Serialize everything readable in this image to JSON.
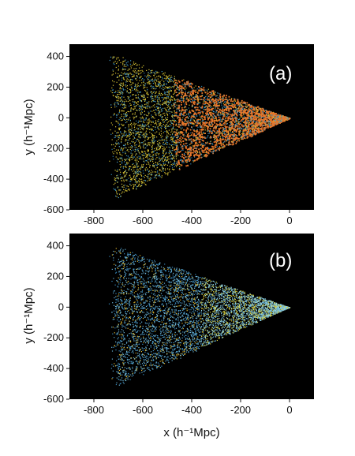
{
  "chart_data": [
    {
      "type": "scatter",
      "panel_label": "(a)",
      "xlabel": "",
      "ylabel": "y (h⁻¹Mpc)",
      "xlim": [
        -900,
        100
      ],
      "ylim": [
        -600,
        480
      ],
      "xticks": [
        "-800",
        "-600",
        "-400",
        "-200",
        "0"
      ],
      "yticks": [
        "400",
        "200",
        "0",
        "-200",
        "-400",
        "-600"
      ],
      "wedge": {
        "apex": [
          0,
          0
        ],
        "far_edge": [
          [
            -700,
            410
          ],
          [
            -700,
            -520
          ]
        ]
      },
      "background": "#000000",
      "point_colors": [
        "#e8762a",
        "#f0a030",
        "#d4c034",
        "#4aa0c8",
        "#2f7fa8"
      ],
      "description_colors_dominant": "#e8762a",
      "grid": false
    },
    {
      "type": "scatter",
      "panel_label": "(b)",
      "xlabel": "x (h⁻¹Mpc)",
      "ylabel": "y (h⁻¹Mpc)",
      "xlim": [
        -900,
        100
      ],
      "ylim": [
        -600,
        480
      ],
      "xticks": [
        "-800",
        "-600",
        "-400",
        "-200",
        "0"
      ],
      "yticks": [
        "400",
        "200",
        "0",
        "-200",
        "-400",
        "-600"
      ],
      "wedge": {
        "apex": [
          0,
          0
        ],
        "far_edge": [
          [
            -700,
            400
          ],
          [
            -700,
            -520
          ]
        ]
      },
      "background": "#000000",
      "point_colors": [
        "#6ab4d8",
        "#8fd0e0",
        "#d8d040",
        "#e0b830",
        "#3a8cc0"
      ],
      "grid": false
    }
  ]
}
